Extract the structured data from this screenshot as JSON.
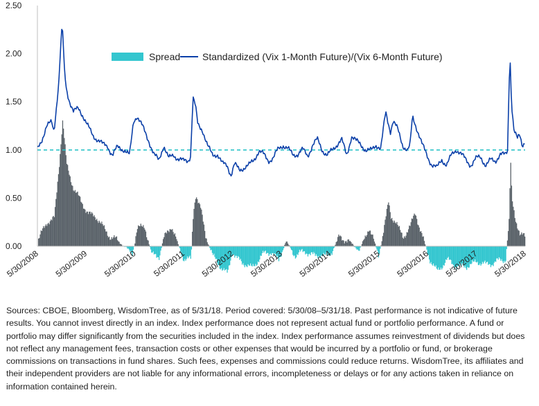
{
  "chart_data": {
    "type": "area",
    "title": "",
    "xlabel": "",
    "ylabel": "",
    "ylim": [
      0.0,
      2.5
    ],
    "y_ticks": [
      "0.00",
      "0.50",
      "1.00",
      "1.50",
      "2.00",
      "2.50"
    ],
    "x_tick_labels": [
      "5/30/2008",
      "5/30/2009",
      "5/30/2010",
      "5/30/2011",
      "5/30/2012",
      "5/30/2013",
      "5/30/2014",
      "5/30/2015",
      "5/30/2016",
      "5/30/2017",
      "5/30/2018"
    ],
    "x_range_years": [
      2008.41,
      2018.41
    ],
    "reference_line": {
      "value": 1.0,
      "style": "dashed",
      "color": "#2ec4c9"
    },
    "legend_position": "top-center",
    "series": [
      {
        "name": "Spread",
        "kind": "area",
        "positive_color": "#5b636a",
        "negative_color": "#33c6cf",
        "x": [
          2008.41,
          2008.6,
          2008.75,
          2008.85,
          2008.92,
          2009.0,
          2009.15,
          2009.3,
          2009.45,
          2009.6,
          2009.75,
          2009.9,
          2010.05,
          2010.2,
          2010.35,
          2010.45,
          2010.6,
          2010.75,
          2010.9,
          2011.0,
          2011.15,
          2011.3,
          2011.4,
          2011.55,
          2011.6,
          2011.65,
          2011.75,
          2011.85,
          2012.0,
          2012.15,
          2012.3,
          2012.4,
          2012.6,
          2012.8,
          2013.0,
          2013.2,
          2013.35,
          2013.5,
          2013.7,
          2013.9,
          2014.1,
          2014.3,
          2014.45,
          2014.6,
          2014.8,
          2015.0,
          2015.2,
          2015.4,
          2015.6,
          2015.65,
          2015.75,
          2015.9,
          2016.05,
          2016.15,
          2016.3,
          2016.45,
          2016.6,
          2016.8,
          2017.0,
          2017.2,
          2017.4,
          2017.6,
          2017.8,
          2018.0,
          2018.08,
          2018.1,
          2018.13,
          2018.2,
          2018.3,
          2018.41
        ],
        "values": [
          0.05,
          0.25,
          0.3,
          0.85,
          1.3,
          0.85,
          0.6,
          0.45,
          0.35,
          0.3,
          0.2,
          0.1,
          0.05,
          0.0,
          -0.08,
          0.18,
          0.22,
          -0.1,
          -0.1,
          0.1,
          0.2,
          0.0,
          -0.12,
          -0.15,
          0.35,
          0.55,
          0.4,
          0.1,
          -0.1,
          -0.2,
          -0.3,
          -0.05,
          -0.18,
          -0.22,
          -0.1,
          -0.05,
          -0.15,
          0.05,
          -0.1,
          -0.05,
          -0.1,
          -0.1,
          -0.05,
          0.1,
          0.05,
          -0.05,
          0.2,
          -0.1,
          0.45,
          0.3,
          0.25,
          0.1,
          0.2,
          0.35,
          0.1,
          -0.15,
          -0.25,
          -0.15,
          -0.2,
          -0.22,
          -0.15,
          -0.2,
          -0.15,
          -0.15,
          0.3,
          0.95,
          0.5,
          0.3,
          0.1,
          0.1
        ]
      },
      {
        "name": "Standardized (Vix 1-Month Future)/(Vix 6-Month Future)",
        "kind": "line",
        "color": "#0a3fa8",
        "x": [
          2008.41,
          2008.5,
          2008.6,
          2008.7,
          2008.75,
          2008.8,
          2008.85,
          2008.88,
          2008.92,
          2008.96,
          2009.0,
          2009.05,
          2009.15,
          2009.25,
          2009.35,
          2009.45,
          2009.55,
          2009.65,
          2009.75,
          2009.85,
          2009.95,
          2010.05,
          2010.2,
          2010.3,
          2010.38,
          2010.45,
          2010.6,
          2010.7,
          2010.8,
          2010.9,
          2011.0,
          2011.1,
          2011.2,
          2011.3,
          2011.4,
          2011.5,
          2011.55,
          2011.6,
          2011.65,
          2011.7,
          2011.8,
          2011.9,
          2012.0,
          2012.1,
          2012.2,
          2012.3,
          2012.38,
          2012.45,
          2012.55,
          2012.65,
          2012.75,
          2012.85,
          2012.95,
          2013.05,
          2013.15,
          2013.25,
          2013.35,
          2013.45,
          2013.55,
          2013.65,
          2013.75,
          2013.85,
          2013.95,
          2014.05,
          2014.15,
          2014.25,
          2014.35,
          2014.45,
          2014.55,
          2014.65,
          2014.75,
          2014.85,
          2014.95,
          2015.05,
          2015.15,
          2015.25,
          2015.35,
          2015.45,
          2015.55,
          2015.6,
          2015.65,
          2015.7,
          2015.8,
          2015.9,
          2016.0,
          2016.05,
          2016.1,
          2016.2,
          2016.3,
          2016.4,
          2016.5,
          2016.6,
          2016.7,
          2016.8,
          2016.9,
          2017.0,
          2017.1,
          2017.2,
          2017.3,
          2017.4,
          2017.5,
          2017.6,
          2017.7,
          2017.8,
          2017.9,
          2018.0,
          2018.05,
          2018.08,
          2018.1,
          2018.13,
          2018.18,
          2018.25,
          2018.3,
          2018.35,
          2018.41
        ],
        "values": [
          1.0,
          1.1,
          1.25,
          1.3,
          1.2,
          1.45,
          1.7,
          2.0,
          2.3,
          1.85,
          1.65,
          1.55,
          1.4,
          1.42,
          1.35,
          1.25,
          1.15,
          1.1,
          1.05,
          1.05,
          0.95,
          1.02,
          1.0,
          0.95,
          1.3,
          1.35,
          1.2,
          1.1,
          0.95,
          0.88,
          1.05,
          0.92,
          0.95,
          0.9,
          0.88,
          0.9,
          0.95,
          1.55,
          1.45,
          1.25,
          1.2,
          1.05,
          0.95,
          0.95,
          0.85,
          0.85,
          0.75,
          0.85,
          0.78,
          0.82,
          0.85,
          0.9,
          0.98,
          0.95,
          0.9,
          0.92,
          1.0,
          1.05,
          1.02,
          0.95,
          0.95,
          1.0,
          0.95,
          1.05,
          1.1,
          1.0,
          0.95,
          1.0,
          1.05,
          1.1,
          0.95,
          1.15,
          1.08,
          1.05,
          1.0,
          1.0,
          1.05,
          1.0,
          1.4,
          1.3,
          1.2,
          1.3,
          1.2,
          1.05,
          1.0,
          1.05,
          1.35,
          1.2,
          1.05,
          0.95,
          0.85,
          0.8,
          0.9,
          0.85,
          0.95,
          1.0,
          0.95,
          0.9,
          0.85,
          0.9,
          0.92,
          0.85,
          0.9,
          0.88,
          0.95,
          0.95,
          1.0,
          1.7,
          2.0,
          1.5,
          1.2,
          1.1,
          1.15,
          1.05,
          1.1
        ]
      }
    ]
  },
  "footnote": "Sources: CBOE, Bloomberg, WisdomTree, as of 5/31/18. Period covered: 5/30/08–5/31/18. Past performance is not indicative of future results. You cannot invest directly in an index. Index performance does not represent actual fund or portfolio performance. A fund or portfolio may differ significantly from the securities included in the index. Index performance assumes reinvestment of dividends but does not reflect any management fees, transaction costs or other expenses that would be incurred by a portfolio or fund, or brokerage commissions on transactions in fund shares. Such fees, expenses and commissions could reduce returns. WisdomTree, its affiliates and their independent providers are not liable for any informational errors, incompleteness or delays or for any actions taken in reliance on information contained herein."
}
